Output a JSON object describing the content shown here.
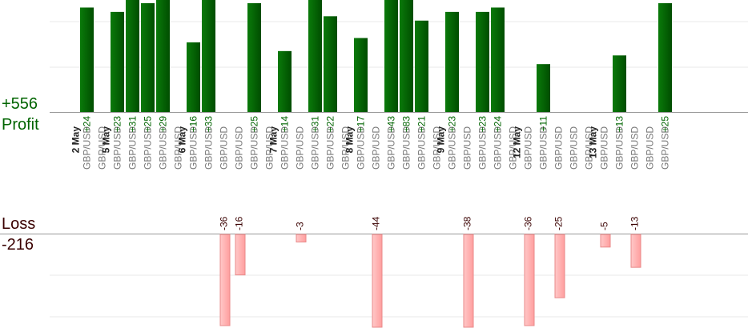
{
  "summary": {
    "profit_total": "+556",
    "profit_label": "Profit",
    "loss_label": "Loss",
    "loss_total": "-216"
  },
  "colors": {
    "profit_bar": "#006400",
    "loss_bar": "#ffb3b3",
    "loss_bar_stroke": "#e88a8a",
    "profit_text": "#006400",
    "loss_text": "#3a0000",
    "date_text": "#222222",
    "pair_text": "#777777",
    "grid": "#e8e8e8",
    "baseline": "#999999"
  },
  "chart_data": {
    "type": "bar",
    "title": "",
    "series": [
      {
        "name": "Profit",
        "values": [
          24,
          23,
          31,
          25,
          29,
          16,
          33,
          25,
          14,
          31,
          22,
          17,
          43,
          83,
          21,
          23,
          23,
          24,
          11,
          13,
          25
        ]
      },
      {
        "name": "Loss",
        "values": [
          -36,
          -16,
          -3,
          -44,
          -38,
          -36,
          -25,
          -5,
          -13
        ]
      }
    ],
    "trades": [
      {
        "slot": 0,
        "pair": "GBP/USD",
        "date": "2 May",
        "value": 24
      },
      {
        "slot": 1,
        "pair": "GBP/USD",
        "date": "",
        "value": null
      },
      {
        "slot": 2,
        "pair": "GBP/USD",
        "date": "5 May",
        "value": 23
      },
      {
        "slot": 3,
        "pair": "GBP/USD",
        "date": "",
        "value": 31
      },
      {
        "slot": 4,
        "pair": "GBP/USD",
        "date": "",
        "value": 25
      },
      {
        "slot": 5,
        "pair": "GBP/USD",
        "date": "",
        "value": 29
      },
      {
        "slot": 6,
        "pair": "GBP/USD",
        "date": "",
        "value": null
      },
      {
        "slot": 7,
        "pair": "GBP/USD",
        "date": "6 May",
        "value": 16
      },
      {
        "slot": 8,
        "pair": "GBP/USD",
        "date": "",
        "value": 33
      },
      {
        "slot": 9,
        "pair": "GBP/USD",
        "date": "",
        "value": -36
      },
      {
        "slot": 10,
        "pair": "GBP/USD",
        "date": "",
        "value": -16
      },
      {
        "slot": 11,
        "pair": "GBP/USD",
        "date": "",
        "value": 25
      },
      {
        "slot": 12,
        "pair": "GBP/USD",
        "date": "",
        "value": null
      },
      {
        "slot": 13,
        "pair": "GBP/USD",
        "date": "7 May",
        "value": 14
      },
      {
        "slot": 14,
        "pair": "GBP/USD",
        "date": "",
        "value": -3
      },
      {
        "slot": 15,
        "pair": "GBP/USD",
        "date": "",
        "value": 31
      },
      {
        "slot": 16,
        "pair": "GBP/USD",
        "date": "",
        "value": 22
      },
      {
        "slot": 17,
        "pair": "GBP/USD",
        "date": "",
        "value": null
      },
      {
        "slot": 18,
        "pair": "GBP/USD",
        "date": "8 May",
        "value": 17
      },
      {
        "slot": 19,
        "pair": "GBP/USD",
        "date": "",
        "value": -44
      },
      {
        "slot": 20,
        "pair": "GBP/USD",
        "date": "",
        "value": 43
      },
      {
        "slot": 21,
        "pair": "GBP/USD",
        "date": "",
        "value": 83
      },
      {
        "slot": 22,
        "pair": "GBP/USD",
        "date": "",
        "value": 21
      },
      {
        "slot": 23,
        "pair": "GBP/USD",
        "date": "",
        "value": null
      },
      {
        "slot": 24,
        "pair": "GBP/USD",
        "date": "9 May",
        "value": 23
      },
      {
        "slot": 25,
        "pair": "GBP/USD",
        "date": "",
        "value": -38
      },
      {
        "slot": 26,
        "pair": "GBP/USD",
        "date": "",
        "value": 23
      },
      {
        "slot": 27,
        "pair": "GBP/USD",
        "date": "",
        "value": 24
      },
      {
        "slot": 28,
        "pair": "GBP/USD",
        "date": "",
        "value": null
      },
      {
        "slot": 29,
        "pair": "GBP/USD",
        "date": "12 May",
        "value": -36
      },
      {
        "slot": 30,
        "pair": "GBP/USD",
        "date": "",
        "value": 11
      },
      {
        "slot": 31,
        "pair": "GBP/USD",
        "date": "",
        "value": -25
      },
      {
        "slot": 32,
        "pair": "GBP/USD",
        "date": "",
        "value": null
      },
      {
        "slot": 33,
        "pair": "GBP/USD",
        "date": "",
        "value": null
      },
      {
        "slot": 34,
        "pair": "GBP/USD",
        "date": "13 May",
        "value": -5
      },
      {
        "slot": 35,
        "pair": "GBP/USD",
        "date": "",
        "value": 13
      },
      {
        "slot": 36,
        "pair": "GBP/USD",
        "date": "",
        "value": -13
      },
      {
        "slot": 37,
        "pair": "GBP/USD",
        "date": "",
        "value": null
      },
      {
        "slot": 38,
        "pair": "GBP/USD",
        "date": "",
        "value": 25
      }
    ],
    "profit_axis_max": 25,
    "loss_axis_max": 20,
    "grid": true,
    "legend": "none"
  }
}
